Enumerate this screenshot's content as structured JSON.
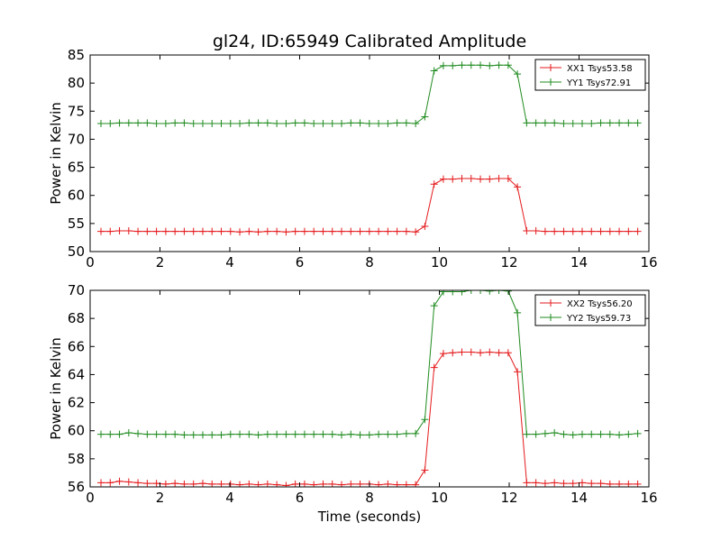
{
  "title": "gl24, ID:65949 Calibrated Amplitude",
  "chart_data": [
    {
      "type": "line",
      "xlabel": "",
      "ylabel": "Power in Kelvin",
      "xlim": [
        0,
        16
      ],
      "ylim": [
        50,
        85
      ],
      "xticks": [
        0,
        2,
        4,
        6,
        8,
        10,
        12,
        14,
        16
      ],
      "yticks": [
        50,
        55,
        60,
        65,
        70,
        75,
        80,
        85
      ],
      "grid": false,
      "legend": "top-right",
      "x": [
        0.31,
        0.575,
        0.84,
        1.105,
        1.37,
        1.635,
        1.9,
        2.165,
        2.43,
        2.695,
        2.96,
        3.225,
        3.49,
        3.755,
        4.02,
        4.285,
        4.55,
        4.815,
        5.08,
        5.345,
        5.61,
        5.875,
        6.14,
        6.405,
        6.67,
        6.935,
        7.2,
        7.465,
        7.73,
        7.995,
        8.26,
        8.525,
        8.79,
        9.055,
        9.32,
        9.585,
        9.85,
        10.115,
        10.38,
        10.645,
        10.91,
        11.175,
        11.44,
        11.705,
        11.97,
        12.235,
        12.5,
        12.765,
        13.03,
        13.295,
        13.56,
        13.825,
        14.09,
        14.355,
        14.62,
        14.885,
        15.15,
        15.415,
        15.68
      ],
      "series": [
        {
          "name": "XX1 Tsys53.58",
          "color": "#e41a1c",
          "values": [
            53.6,
            53.6,
            53.7,
            53.7,
            53.6,
            53.6,
            53.6,
            53.6,
            53.6,
            53.6,
            53.6,
            53.6,
            53.6,
            53.6,
            53.6,
            53.5,
            53.6,
            53.5,
            53.6,
            53.6,
            53.5,
            53.6,
            53.6,
            53.6,
            53.6,
            53.6,
            53.6,
            53.6,
            53.6,
            53.6,
            53.6,
            53.6,
            53.6,
            53.6,
            53.5,
            54.5,
            62.0,
            62.9,
            62.9,
            63.0,
            63.0,
            62.9,
            62.9,
            63.0,
            63.0,
            61.5,
            53.7,
            53.7,
            53.6,
            53.6,
            53.6,
            53.6,
            53.6,
            53.6,
            53.6,
            53.6,
            53.6,
            53.6,
            53.6
          ]
        },
        {
          "name": "YY1 Tsys72.91",
          "color": "#1f8b1f",
          "values": [
            72.8,
            72.8,
            72.9,
            72.9,
            72.9,
            72.9,
            72.8,
            72.8,
            72.9,
            72.9,
            72.8,
            72.8,
            72.8,
            72.8,
            72.8,
            72.8,
            72.9,
            72.9,
            72.9,
            72.8,
            72.8,
            72.9,
            72.9,
            72.8,
            72.8,
            72.8,
            72.8,
            72.9,
            72.9,
            72.8,
            72.8,
            72.8,
            72.9,
            72.9,
            72.8,
            74.0,
            82.2,
            83.1,
            83.1,
            83.2,
            83.2,
            83.2,
            83.1,
            83.2,
            83.2,
            81.6,
            72.9,
            72.9,
            72.9,
            72.9,
            72.8,
            72.8,
            72.8,
            72.8,
            72.9,
            72.9,
            72.9,
            72.9,
            72.9
          ]
        }
      ]
    },
    {
      "type": "line",
      "xlabel": "Time (seconds)",
      "ylabel": "Power in Kelvin",
      "xlim": [
        0,
        16
      ],
      "ylim": [
        56,
        70
      ],
      "xticks": [
        0,
        2,
        4,
        6,
        8,
        10,
        12,
        14,
        16
      ],
      "yticks": [
        56,
        58,
        60,
        62,
        64,
        66,
        68,
        70
      ],
      "grid": false,
      "legend": "top-right",
      "x": [
        0.31,
        0.575,
        0.84,
        1.105,
        1.37,
        1.635,
        1.9,
        2.165,
        2.43,
        2.695,
        2.96,
        3.225,
        3.49,
        3.755,
        4.02,
        4.285,
        4.55,
        4.815,
        5.08,
        5.345,
        5.61,
        5.875,
        6.14,
        6.405,
        6.67,
        6.935,
        7.2,
        7.465,
        7.73,
        7.995,
        8.26,
        8.525,
        8.79,
        9.055,
        9.32,
        9.585,
        9.85,
        10.115,
        10.38,
        10.645,
        10.91,
        11.175,
        11.44,
        11.705,
        11.97,
        12.235,
        12.5,
        12.765,
        13.03,
        13.295,
        13.56,
        13.825,
        14.09,
        14.355,
        14.62,
        14.885,
        15.15,
        15.415,
        15.68
      ],
      "series": [
        {
          "name": "XX2 Tsys56.20",
          "color": "#e41a1c",
          "values": [
            56.3,
            56.3,
            56.4,
            56.35,
            56.3,
            56.25,
            56.25,
            56.2,
            56.25,
            56.2,
            56.2,
            56.25,
            56.2,
            56.2,
            56.2,
            56.15,
            56.2,
            56.15,
            56.2,
            56.15,
            56.1,
            56.2,
            56.2,
            56.15,
            56.2,
            56.2,
            56.15,
            56.2,
            56.2,
            56.2,
            56.15,
            56.2,
            56.15,
            56.15,
            56.15,
            57.2,
            64.5,
            65.5,
            65.55,
            65.6,
            65.6,
            65.55,
            65.6,
            65.55,
            65.55,
            64.2,
            56.3,
            56.3,
            56.25,
            56.3,
            56.25,
            56.25,
            56.3,
            56.25,
            56.25,
            56.2,
            56.2,
            56.2,
            56.2
          ]
        },
        {
          "name": "YY2 Tsys59.73",
          "color": "#1f8b1f",
          "values": [
            59.75,
            59.75,
            59.75,
            59.85,
            59.8,
            59.75,
            59.75,
            59.75,
            59.75,
            59.7,
            59.7,
            59.7,
            59.7,
            59.7,
            59.75,
            59.75,
            59.75,
            59.7,
            59.75,
            59.75,
            59.75,
            59.75,
            59.75,
            59.75,
            59.75,
            59.75,
            59.7,
            59.75,
            59.7,
            59.7,
            59.75,
            59.75,
            59.75,
            59.8,
            59.8,
            60.8,
            68.9,
            69.9,
            69.9,
            69.9,
            70.0,
            70.0,
            69.95,
            70.0,
            69.95,
            68.4,
            59.75,
            59.75,
            59.8,
            59.85,
            59.75,
            59.7,
            59.75,
            59.75,
            59.75,
            59.75,
            59.7,
            59.75,
            59.8
          ]
        }
      ]
    }
  ]
}
